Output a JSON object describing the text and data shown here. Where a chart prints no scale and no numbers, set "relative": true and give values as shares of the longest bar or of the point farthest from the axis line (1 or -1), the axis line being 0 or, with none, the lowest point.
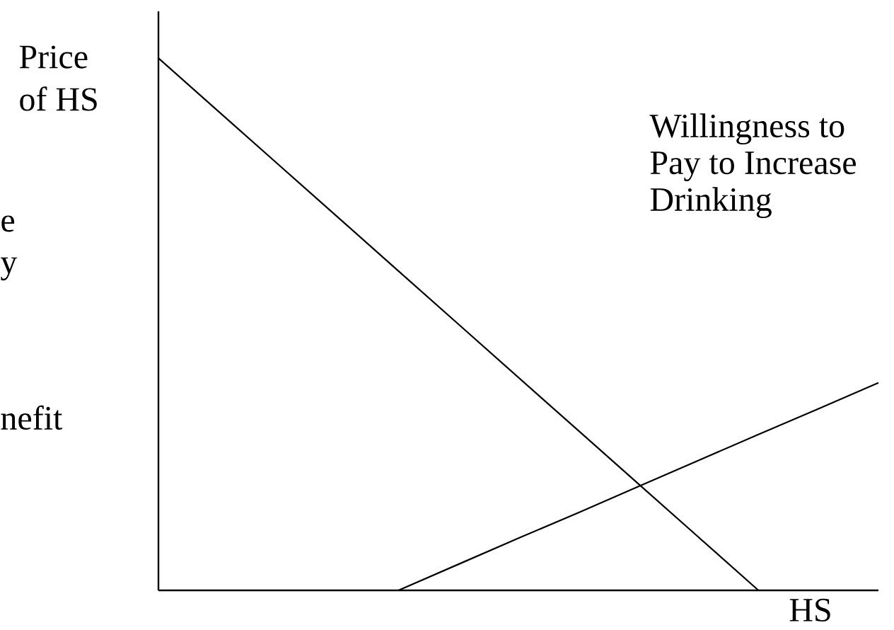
{
  "chart_data": {
    "type": "line",
    "relative": true,
    "xlabel": "HS",
    "ylabel": "Price of HS",
    "annotations": [
      "e",
      "y",
      "nefit"
    ],
    "categories": [
      null,
      null,
      null,
      null,
      null,
      null,
      null,
      null,
      null,
      null,
      null,
      null,
      null
    ],
    "series": [
      {
        "color": "#000000",
        "values": [
          1,
          0.9,
          0.8,
          0.7,
          0.6,
          0.5,
          0.4,
          0.3,
          0.2,
          0.1,
          0,
          null,
          null
        ]
      },
      {
        "name": "Willingness to Pay to Increase Drinking",
        "color": "#000000",
        "values": [
          null,
          null,
          null,
          null,
          0,
          0.049,
          0.098,
          0.146,
          0.195,
          0.244,
          0.293,
          0.341,
          0.39
        ]
      }
    ]
  }
}
